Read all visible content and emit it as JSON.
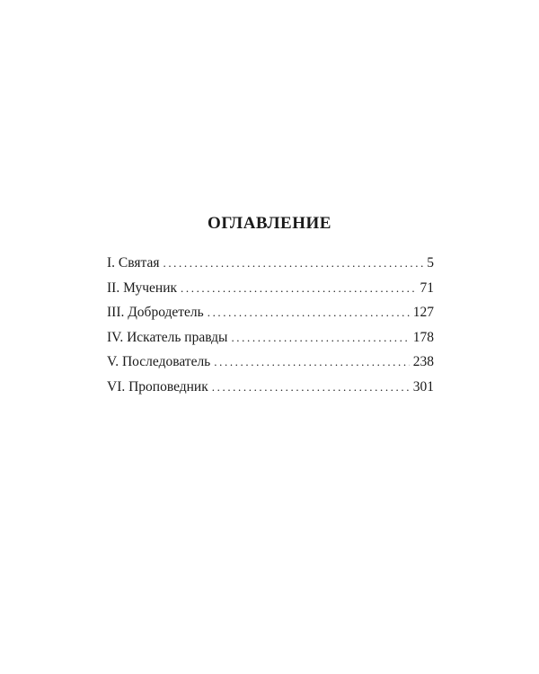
{
  "title": "ОГЛАВЛЕНИЕ",
  "entries": [
    {
      "label": "I. Святая",
      "page": "5"
    },
    {
      "label": "II. Мученик",
      "page": "71"
    },
    {
      "label": "III. Добродетель",
      "page": "127"
    },
    {
      "label": "IV. Искатель правды",
      "page": "178"
    },
    {
      "label": "V. Последователь",
      "page": "238"
    },
    {
      "label": "VI. Проповедник",
      "page": "301"
    }
  ]
}
